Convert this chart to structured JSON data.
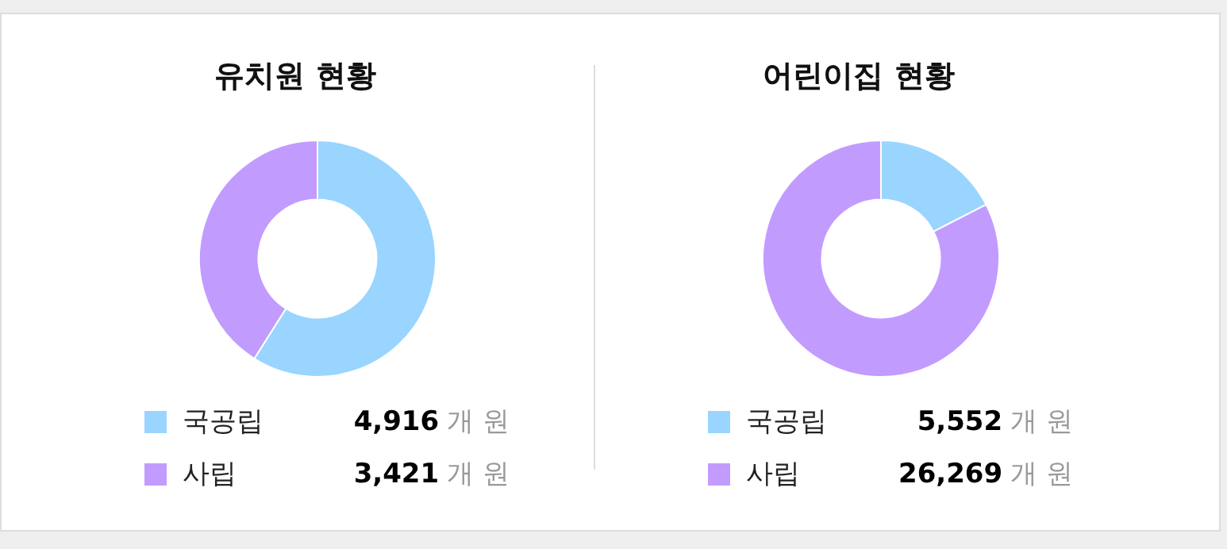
{
  "chart_data": [
    {
      "type": "donut",
      "title": "유치원 현황",
      "categories": [
        "국공립",
        "사립"
      ],
      "values": [
        4916,
        3421
      ],
      "colors": [
        "#99d5ff",
        "#c29bff"
      ],
      "value_labels": [
        "4,916 개 원",
        "3,421 개 원"
      ],
      "legend": "bottom"
    },
    {
      "type": "donut",
      "title": "어린이집 현황",
      "categories": [
        "국공립",
        "사립"
      ],
      "values": [
        5552,
        26269
      ],
      "colors": [
        "#99d5ff",
        "#c29bff"
      ],
      "value_labels": [
        "5,552 개 원",
        "26,269 개 원"
      ],
      "legend": "bottom"
    }
  ]
}
